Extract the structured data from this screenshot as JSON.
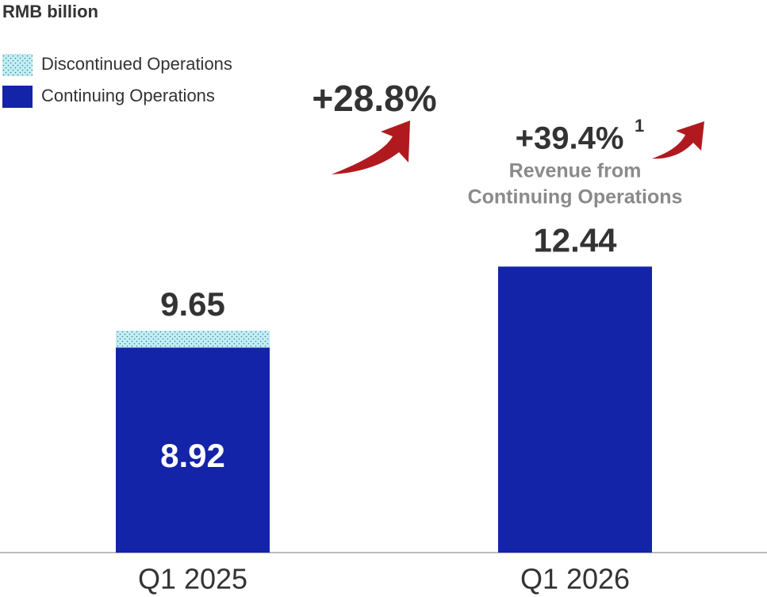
{
  "chart_data": {
    "type": "stacked_bar",
    "y_label": "RMB billion",
    "categories": [
      "Q1 2025",
      "Q1 2026"
    ],
    "series": [
      {
        "name": "Discontinued Operations",
        "color": "#c2eef6",
        "values": [
          0.73,
          null
        ]
      },
      {
        "name": "Continuing Operations",
        "color": "#1424a8",
        "values": [
          8.92,
          12.44
        ]
      }
    ],
    "totals": [
      9.65,
      12.44
    ],
    "ylim": [
      0,
      24
    ],
    "annotations": {
      "growth_total": "+28.8%",
      "growth_continuing": "+39.4%",
      "footnote": "1",
      "note_line1": "Revenue from",
      "note_line2": "Continuing Operations"
    }
  }
}
